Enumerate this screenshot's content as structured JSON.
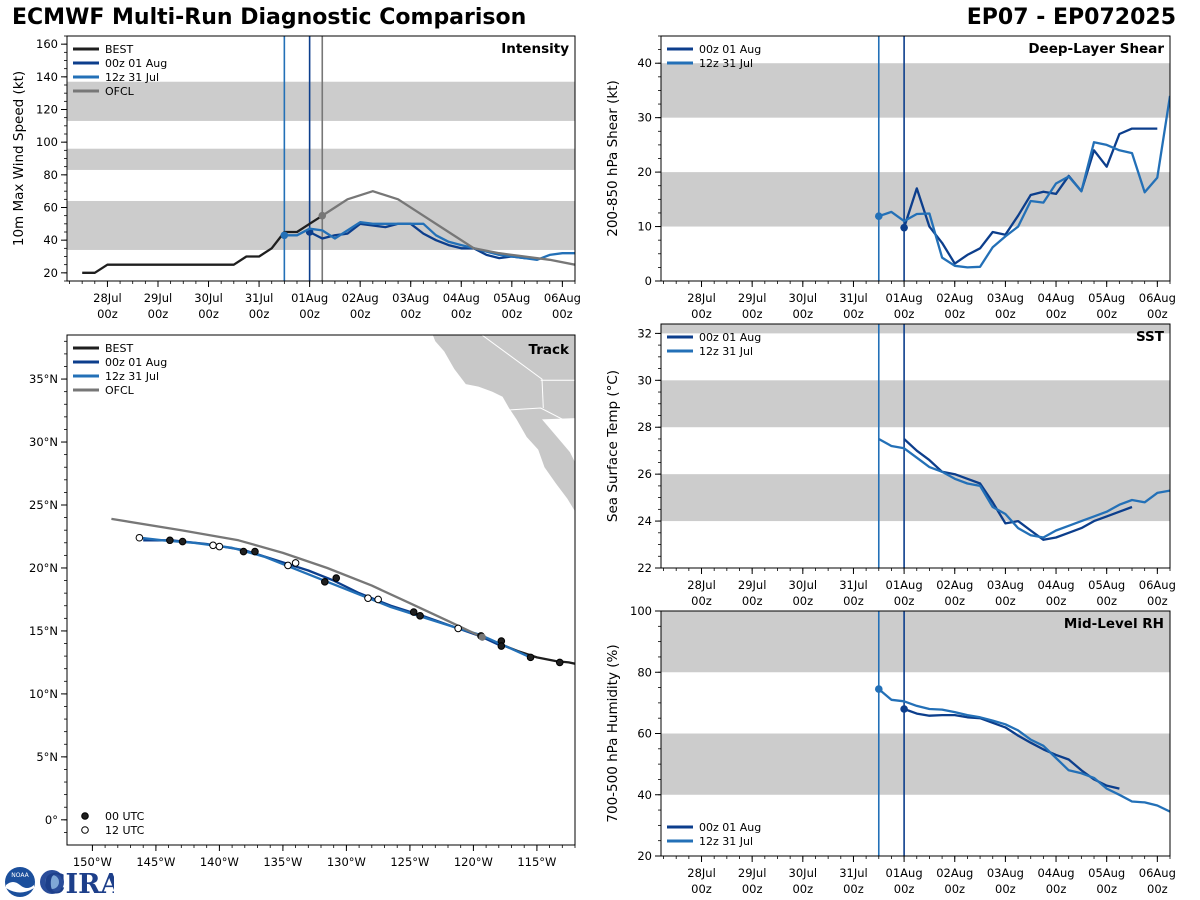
{
  "header": {
    "title_left": "ECMWF Multi-Run Diagnostic Comparison",
    "title_right": "EP07 - EP072025"
  },
  "logo": {
    "text": "CIRA",
    "seal_text": "NOAA"
  },
  "colors": {
    "best": "#1f1f1f",
    "run_00z": "#0c3e8c",
    "run_12z": "#2370b7",
    "ofcl": "#777777",
    "band": "#cccccc",
    "land": "#c8c8c8"
  },
  "time_axis": {
    "domain": [
      -4.8,
      5.25
    ],
    "tick_labels": [
      {
        "t": -4,
        "line1": "28Jul",
        "line2": "00z"
      },
      {
        "t": -3,
        "line1": "29Jul",
        "line2": "00z"
      },
      {
        "t": -2,
        "line1": "30Jul",
        "line2": "00z"
      },
      {
        "t": -1,
        "line1": "31Jul",
        "line2": "00z"
      },
      {
        "t": 0,
        "line1": "01Aug",
        "line2": "00z"
      },
      {
        "t": 1,
        "line1": "02Aug",
        "line2": "00z"
      },
      {
        "t": 2,
        "line1": "03Aug",
        "line2": "00z"
      },
      {
        "t": 3,
        "line1": "04Aug",
        "line2": "00z"
      },
      {
        "t": 4,
        "line1": "05Aug",
        "line2": "00z"
      },
      {
        "t": 5,
        "line1": "06Aug",
        "line2": "00z"
      }
    ]
  },
  "chart_data": [
    {
      "id": "intensity",
      "type": "line",
      "title": "Intensity",
      "ylabel": "10m Max Wind Speed (kt)",
      "xlabel": "",
      "ylim": [
        15,
        165
      ],
      "yticks": [
        20,
        40,
        60,
        80,
        100,
        120,
        140,
        160
      ],
      "bands": [
        [
          34,
          64
        ],
        [
          83,
          96
        ],
        [
          113,
          137
        ]
      ],
      "vlines": [
        {
          "t": -0.5,
          "series": "12z 31 Jul"
        },
        {
          "t": 0,
          "series": "00z 01 Aug"
        },
        {
          "t": 0.25,
          "series": "OFCL"
        }
      ],
      "legend": [
        "BEST",
        "00z 01 Aug",
        "12z 31 Jul",
        "OFCL"
      ],
      "series": [
        {
          "name": "BEST",
          "key": "best",
          "t": [
            -4.5,
            -4.25,
            -4,
            -3.75,
            -3.5,
            -3.25,
            -3,
            -2.75,
            -2.5,
            -2.25,
            -2,
            -1.75,
            -1.5,
            -1.25,
            -1,
            -0.75,
            -0.5,
            -0.25,
            0,
            0.25
          ],
          "values": [
            20,
            20,
            25,
            25,
            25,
            25,
            25,
            25,
            25,
            25,
            25,
            25,
            25,
            30,
            30,
            35,
            45,
            45,
            50,
            55
          ]
        },
        {
          "name": "00z 01 Aug",
          "key": "run_00z",
          "start_marker": true,
          "t": [
            0,
            0.25,
            0.5,
            0.75,
            1,
            1.25,
            1.5,
            1.75,
            2,
            2.25,
            2.5,
            2.75,
            3,
            3.25,
            3.5,
            3.75,
            4,
            4.25,
            4.5
          ],
          "values": [
            45,
            41,
            43,
            44,
            50,
            49,
            48,
            50,
            50,
            44,
            40,
            37,
            35,
            35,
            31,
            29,
            30,
            29,
            29
          ]
        },
        {
          "name": "12z 31 Jul",
          "key": "run_12z",
          "start_marker": true,
          "t": [
            -0.5,
            -0.25,
            0,
            0.25,
            0.5,
            0.75,
            1,
            1.25,
            1.5,
            1.75,
            2,
            2.25,
            2.5,
            2.75,
            3,
            3.25,
            3.5,
            3.75,
            4,
            4.25,
            4.5,
            4.75,
            5,
            5.25
          ],
          "values": [
            43,
            43,
            47,
            46,
            41,
            46,
            51,
            50,
            50,
            50,
            50,
            50,
            43,
            39,
            37,
            35,
            33,
            31,
            30,
            29,
            28,
            31,
            32,
            32
          ]
        },
        {
          "name": "OFCL",
          "key": "ofcl",
          "start_marker": true,
          "t": [
            0.25,
            0.5,
            0.75,
            1.25,
            1.75,
            2.25,
            2.75,
            3.25,
            3.75,
            4.25,
            4.75,
            5.25
          ],
          "values": [
            55,
            60,
            65,
            70,
            65,
            55,
            45,
            35,
            32,
            30,
            28,
            25
          ]
        }
      ]
    },
    {
      "id": "shear",
      "type": "line",
      "title": "Deep-Layer Shear",
      "ylabel": "200-850 hPa Shear (kt)",
      "xlabel": "",
      "ylim": [
        0,
        45
      ],
      "yticks": [
        0,
        10,
        20,
        30,
        40
      ],
      "bands": [
        [
          10,
          20
        ],
        [
          30,
          40
        ]
      ],
      "vlines": [
        {
          "t": -0.5,
          "series": "12z 31 Jul"
        },
        {
          "t": 0,
          "series": "00z 01 Aug"
        }
      ],
      "legend": [
        "00z 01 Aug",
        "12z 31 Jul"
      ],
      "series": [
        {
          "name": "00z 01 Aug",
          "key": "run_00z",
          "start_marker": true,
          "t": [
            0,
            0.25,
            0.5,
            0.75,
            1,
            1.25,
            1.5,
            1.75,
            2,
            2.25,
            2.5,
            2.75,
            3,
            3.25,
            3.5,
            3.75,
            4,
            4.25,
            4.5,
            4.75,
            5
          ],
          "values": [
            9.8,
            17,
            10,
            7,
            3.2,
            4.8,
            6,
            9,
            8.5,
            12,
            15.8,
            16.4,
            16,
            19.3,
            16.5,
            24,
            21,
            27,
            28,
            28,
            28
          ]
        },
        {
          "name": "12z 31 Jul",
          "key": "run_12z",
          "start_marker": true,
          "t": [
            -0.5,
            -0.25,
            0,
            0.25,
            0.5,
            0.75,
            1,
            1.25,
            1.5,
            1.75,
            2,
            2.25,
            2.5,
            2.75,
            3,
            3.25,
            3.5,
            3.75,
            4,
            4.25,
            4.5,
            4.75,
            5,
            5.25
          ],
          "values": [
            11.9,
            12.7,
            11,
            12.3,
            12.4,
            4.3,
            2.8,
            2.5,
            2.6,
            6.2,
            8.2,
            10,
            14.7,
            14.4,
            17.9,
            19.2,
            16.5,
            25.5,
            25,
            24,
            23.5,
            16.3,
            19,
            34
          ]
        }
      ]
    },
    {
      "id": "sst",
      "type": "line",
      "title": "SST",
      "ylabel": "Sea Surface Temp (°C)",
      "xlabel": "",
      "ylim": [
        22,
        32.4
      ],
      "yticks": [
        22,
        24,
        26,
        28,
        30,
        32
      ],
      "bands": [
        [
          24,
          26
        ],
        [
          28,
          30
        ],
        [
          32,
          32.4
        ]
      ],
      "vlines": [
        {
          "t": -0.5,
          "series": "12z 31 Jul"
        },
        {
          "t": 0,
          "series": "00z 01 Aug"
        }
      ],
      "legend": [
        "00z 01 Aug",
        "12z 31 Jul"
      ],
      "series": [
        {
          "name": "00z 01 Aug",
          "key": "run_00z",
          "start_marker": false,
          "t": [
            0,
            0.25,
            0.5,
            0.75,
            1,
            1.25,
            1.5,
            1.75,
            2,
            2.25,
            2.5,
            2.75,
            3,
            3.25,
            3.5,
            3.75,
            4,
            4.25,
            4.5
          ],
          "values": [
            27.5,
            27,
            26.6,
            26.1,
            26,
            25.8,
            25.6,
            24.8,
            23.9,
            24,
            23.6,
            23.2,
            23.3,
            23.5,
            23.7,
            24,
            24.2,
            24.4,
            24.6
          ]
        },
        {
          "name": "12z 31 Jul",
          "key": "run_12z",
          "start_marker": false,
          "t": [
            -0.5,
            -0.25,
            0,
            0.25,
            0.5,
            0.75,
            1,
            1.25,
            1.5,
            1.75,
            2,
            2.25,
            2.5,
            2.75,
            3,
            3.25,
            3.5,
            3.75,
            4,
            4.25,
            4.5,
            4.75,
            5,
            5.25
          ],
          "values": [
            27.5,
            27.2,
            27.1,
            26.7,
            26.3,
            26.1,
            25.8,
            25.6,
            25.5,
            24.6,
            24.3,
            23.7,
            23.4,
            23.3,
            23.6,
            23.8,
            24,
            24.2,
            24.4,
            24.7,
            24.9,
            24.8,
            25.2,
            25.3
          ]
        }
      ]
    },
    {
      "id": "rh",
      "type": "line",
      "title": "Mid-Level RH",
      "ylabel": "700-500 hPa Humidity (%)",
      "xlabel": "",
      "ylim": [
        20,
        100
      ],
      "yticks": [
        20,
        40,
        60,
        80,
        100
      ],
      "bands": [
        [
          40,
          60
        ],
        [
          80,
          100
        ]
      ],
      "vlines": [
        {
          "t": -0.5,
          "series": "12z 31 Jul"
        },
        {
          "t": 0,
          "series": "00z 01 Aug"
        }
      ],
      "legend": [
        "00z 01 Aug",
        "12z 31 Jul"
      ],
      "series": [
        {
          "name": "00z 01 Aug",
          "key": "run_00z",
          "start_marker": true,
          "t": [
            0,
            0.25,
            0.5,
            0.75,
            1,
            1.25,
            1.5,
            1.75,
            2,
            2.25,
            2.5,
            2.75,
            3,
            3.25,
            3.5,
            3.75,
            4,
            4.25
          ],
          "values": [
            68,
            66.5,
            65.8,
            66,
            66,
            65.3,
            65,
            63.5,
            62,
            59.3,
            57,
            54.8,
            53,
            51.5,
            48,
            45,
            43,
            42
          ]
        },
        {
          "name": "12z 31 Jul",
          "key": "run_12z",
          "start_marker": true,
          "t": [
            -0.5,
            -0.25,
            0,
            0.25,
            0.5,
            0.75,
            1,
            1.25,
            1.5,
            1.75,
            2,
            2.25,
            2.5,
            2.75,
            3,
            3.25,
            3.5,
            3.75,
            4,
            4.25,
            4.5,
            4.75,
            5,
            5.25
          ],
          "values": [
            74.5,
            71,
            70.5,
            69,
            68,
            67.8,
            67,
            66,
            65.3,
            64.2,
            63,
            61,
            58,
            56,
            52,
            48,
            47,
            45.5,
            42,
            40,
            37.8,
            37.5,
            36.5,
            34.5
          ]
        }
      ]
    },
    {
      "id": "track",
      "type": "scatter",
      "title": "Track",
      "xlabel": "",
      "ylabel": "",
      "xlim": [
        -152,
        -112
      ],
      "ylim": [
        -2,
        38.5
      ],
      "xticks": [
        {
          "v": -150,
          "label": "150°W"
        },
        {
          "v": -145,
          "label": "145°W"
        },
        {
          "v": -140,
          "label": "140°W"
        },
        {
          "v": -135,
          "label": "135°W"
        },
        {
          "v": -130,
          "label": "130°W"
        },
        {
          "v": -125,
          "label": "125°W"
        },
        {
          "v": -120,
          "label": "120°W"
        },
        {
          "v": -115,
          "label": "115°W"
        }
      ],
      "yticks": [
        {
          "v": 0,
          "label": "0°"
        },
        {
          "v": 5,
          "label": "5°N"
        },
        {
          "v": 10,
          "label": "10°N"
        },
        {
          "v": 15,
          "label": "15°N"
        },
        {
          "v": 20,
          "label": "20°N"
        },
        {
          "v": 25,
          "label": "25°N"
        },
        {
          "v": 30,
          "label": "30°N"
        },
        {
          "v": 35,
          "label": "35°N"
        }
      ],
      "legend": [
        "BEST",
        "00z 01 Aug",
        "12z 31 Jul",
        "OFCL"
      ],
      "marker_legend": [
        {
          "label": "00 UTC",
          "filled": true
        },
        {
          "label": "12 UTC",
          "filled": false
        }
      ],
      "series": [
        {
          "name": "BEST",
          "key": "best",
          "lon": [
            -118.0,
            -116.5,
            -115.0,
            -113.5,
            -112.5,
            -112.0
          ],
          "lat": [
            14.0,
            13.4,
            12.9,
            12.6,
            12.5,
            12.4
          ],
          "markers": [
            {
              "lon": -113.2,
              "lat": 12.5,
              "filled": true
            },
            {
              "lon": -117.8,
              "lat": 14.2,
              "filled": true
            }
          ]
        },
        {
          "name": "00z 01 Aug",
          "key": "run_00z",
          "lon": [
            -117.8,
            -119.5,
            -121.2,
            -124.0,
            -126.5,
            -129.0,
            -131.0,
            -133.0,
            -135.5,
            -138.0,
            -141.0,
            -143.8,
            -146.0
          ],
          "lat": [
            13.8,
            14.6,
            15.2,
            16.2,
            17.0,
            18.0,
            19.0,
            19.8,
            20.6,
            21.4,
            21.9,
            22.2,
            22.2
          ],
          "markers": [
            {
              "lon": -117.8,
              "lat": 13.8,
              "filled": true
            },
            {
              "lon": -121.2,
              "lat": 15.2,
              "filled": false
            },
            {
              "lon": -124.2,
              "lat": 16.2,
              "filled": true
            },
            {
              "lon": -127.5,
              "lat": 17.5,
              "filled": false
            },
            {
              "lon": -130.8,
              "lat": 19.2,
              "filled": true
            },
            {
              "lon": -134.0,
              "lat": 20.4,
              "filled": false
            },
            {
              "lon": -137.2,
              "lat": 21.3,
              "filled": true
            },
            {
              "lon": -140.5,
              "lat": 21.8,
              "filled": false
            },
            {
              "lon": -143.9,
              "lat": 22.2,
              "filled": true
            }
          ]
        },
        {
          "name": "12z 31 Jul",
          "key": "run_12z",
          "lon": [
            -115.5,
            -117.5,
            -119.5,
            -121.5,
            -124.0,
            -126.5,
            -129.0,
            -131.5,
            -134.0,
            -136.5,
            -139.0,
            -142.0,
            -144.5,
            -146.3
          ],
          "lat": [
            12.9,
            13.8,
            14.7,
            15.3,
            16.1,
            16.9,
            17.9,
            18.9,
            19.9,
            20.9,
            21.6,
            22.0,
            22.2,
            22.4
          ],
          "markers": [
            {
              "lon": -115.5,
              "lat": 12.9,
              "filled": true
            },
            {
              "lon": -119.4,
              "lat": 14.6,
              "filled": true
            },
            {
              "lon": -124.7,
              "lat": 16.5,
              "filled": true
            },
            {
              "lon": -128.3,
              "lat": 17.6,
              "filled": false
            },
            {
              "lon": -131.7,
              "lat": 18.9,
              "filled": true
            },
            {
              "lon": -134.6,
              "lat": 20.2,
              "filled": false
            },
            {
              "lon": -138.1,
              "lat": 21.3,
              "filled": true
            },
            {
              "lon": -140.0,
              "lat": 21.7,
              "filled": false
            },
            {
              "lon": -142.9,
              "lat": 22.1,
              "filled": true
            },
            {
              "lon": -146.3,
              "lat": 22.4,
              "filled": false
            }
          ]
        },
        {
          "name": "OFCL",
          "key": "ofcl",
          "lon": [
            -119.3,
            -122.0,
            -125.0,
            -128.0,
            -131.5,
            -135.0,
            -138.5,
            -143.0,
            -148.5
          ],
          "lat": [
            14.5,
            15.8,
            17.2,
            18.6,
            20.0,
            21.2,
            22.2,
            23.0,
            23.9
          ],
          "markers": [
            {
              "lon": -119.3,
              "lat": 14.5,
              "filled": true
            }
          ]
        }
      ]
    }
  ]
}
